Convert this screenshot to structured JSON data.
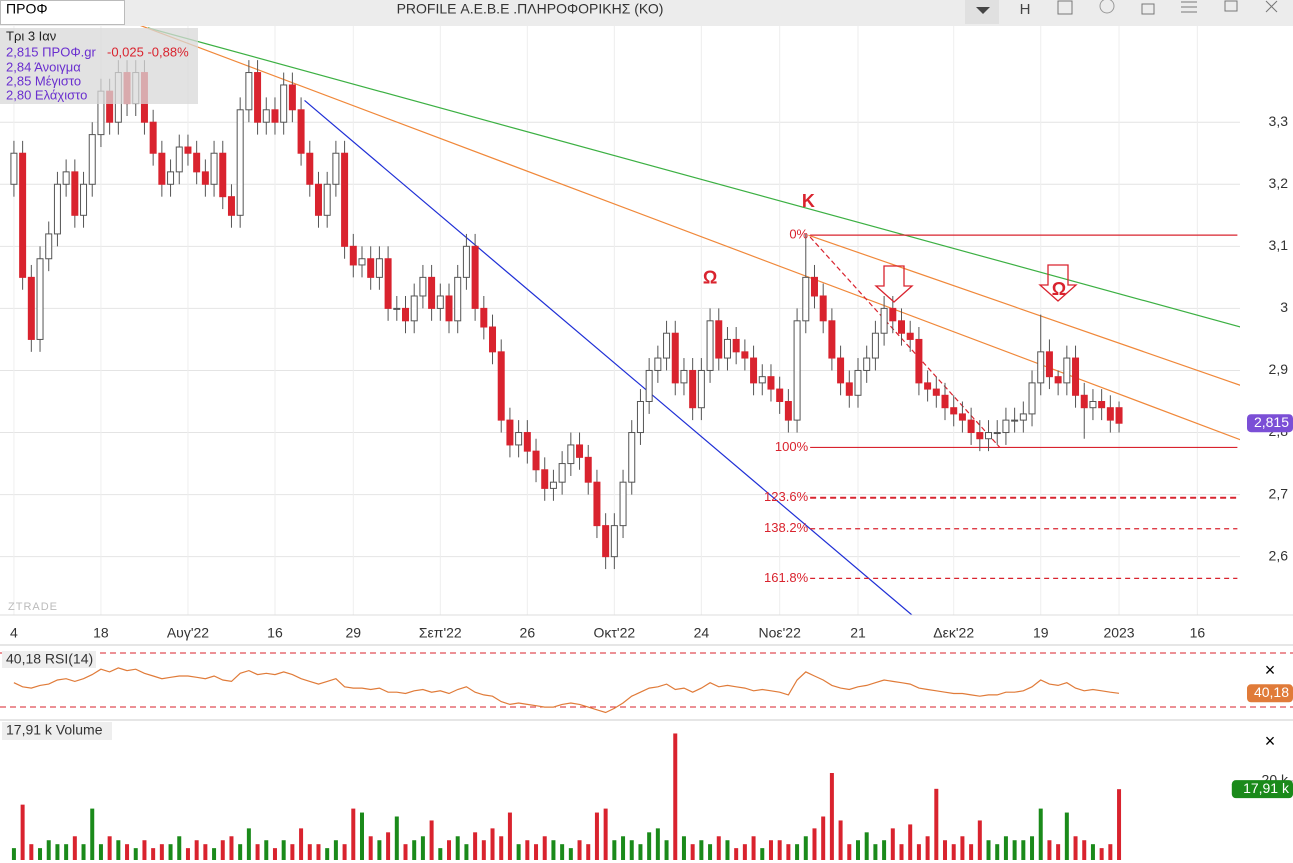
{
  "window": {
    "tab": "ΠΡΟΦ",
    "title": "PROFILE Α.Ε.Β.Ε .ΠΛΗΡΟΦΟΡΙΚΗΣ (ΚΟ)",
    "button": "H",
    "close": "×"
  },
  "info": {
    "date": "Τρι 3 Ιαν",
    "price": "2,815 ΠΡΟΦ.gr",
    "change": "-0,025 -0,88%",
    "lines": [
      "2,84 Άνοιγμα",
      "2,85 Μέγιστο",
      "2,80 Ελάχιστο"
    ]
  },
  "chart_data": [
    {
      "type": "candlestick",
      "watermark": "ZTRADE",
      "grid": true,
      "up_color": "#ffffff",
      "down_color": "#d9232e",
      "outline": "#555555",
      "xlim": [
        -1.6,
        140.9
      ],
      "ylim": [
        2.506,
        3.455
      ],
      "xticks": [
        {
          "value": 0,
          "label": "4"
        },
        {
          "value": 10,
          "label": "18"
        },
        {
          "value": 20,
          "label": "Αυγ'22"
        },
        {
          "value": 30,
          "label": "16"
        },
        {
          "value": 39,
          "label": "29"
        },
        {
          "value": 49,
          "label": "Σεπ'22"
        },
        {
          "value": 59,
          "label": "26"
        },
        {
          "value": 69,
          "label": "Οκτ'22"
        },
        {
          "value": 79,
          "label": "24"
        },
        {
          "value": 88,
          "label": "Νοε'22"
        },
        {
          "value": 97,
          "label": "21"
        },
        {
          "value": 108,
          "label": "Δεκ'22"
        },
        {
          "value": 118,
          "label": "19"
        },
        {
          "value": 127,
          "label": "2023"
        },
        {
          "value": 136,
          "label": "16"
        }
      ],
      "yticks": [
        {
          "value": 2.6,
          "label": "2,6"
        },
        {
          "value": 2.7,
          "label": "2,7"
        },
        {
          "value": 2.8,
          "label": "2,8"
        },
        {
          "value": 2.9,
          "label": "2,9"
        },
        3,
        {
          "value": 3.1,
          "label": "3,1"
        },
        {
          "value": 3.2,
          "label": "3,2"
        },
        {
          "value": 3.3,
          "label": "3,3"
        }
      ],
      "candles": [
        [
          3.2,
          3.27,
          3.18,
          3.25
        ],
        [
          3.25,
          3.27,
          3.03,
          3.05
        ],
        [
          3.05,
          3.07,
          2.93,
          2.95
        ],
        [
          2.95,
          3.1,
          2.93,
          3.08
        ],
        [
          3.08,
          3.14,
          3.06,
          3.12
        ],
        [
          3.12,
          3.22,
          3.1,
          3.2
        ],
        [
          3.2,
          3.24,
          3.18,
          3.22
        ],
        [
          3.22,
          3.24,
          3.13,
          3.15
        ],
        [
          3.15,
          3.22,
          3.13,
          3.2
        ],
        [
          3.2,
          3.3,
          3.18,
          3.28
        ],
        [
          3.28,
          3.37,
          3.26,
          3.35
        ],
        [
          3.35,
          3.37,
          3.28,
          3.3
        ],
        [
          3.3,
          3.4,
          3.28,
          3.38
        ],
        [
          3.38,
          3.4,
          3.31,
          3.33
        ],
        [
          3.33,
          3.4,
          3.31,
          3.38
        ],
        [
          3.38,
          3.4,
          3.28,
          3.3
        ],
        [
          3.3,
          3.32,
          3.23,
          3.25
        ],
        [
          3.25,
          3.27,
          3.18,
          3.2
        ],
        [
          3.2,
          3.24,
          3.18,
          3.22
        ],
        [
          3.22,
          3.28,
          3.2,
          3.26
        ],
        [
          3.26,
          3.28,
          3.23,
          3.25
        ],
        [
          3.25,
          3.27,
          3.2,
          3.22
        ],
        [
          3.22,
          3.24,
          3.18,
          3.2
        ],
        [
          3.2,
          3.27,
          3.18,
          3.25
        ],
        [
          3.25,
          3.27,
          3.16,
          3.18
        ],
        [
          3.18,
          3.2,
          3.13,
          3.15
        ],
        [
          3.15,
          3.34,
          3.13,
          3.32
        ],
        [
          3.32,
          3.4,
          3.3,
          3.38
        ],
        [
          3.38,
          3.4,
          3.28,
          3.3
        ],
        [
          3.3,
          3.34,
          3.28,
          3.32
        ],
        [
          3.32,
          3.34,
          3.28,
          3.3
        ],
        [
          3.3,
          3.38,
          3.28,
          3.36
        ],
        [
          3.36,
          3.38,
          3.3,
          3.32
        ],
        [
          3.32,
          3.34,
          3.23,
          3.25
        ],
        [
          3.25,
          3.27,
          3.18,
          3.2
        ],
        [
          3.2,
          3.22,
          3.13,
          3.15
        ],
        [
          3.15,
          3.22,
          3.13,
          3.2
        ],
        [
          3.2,
          3.27,
          3.18,
          3.25
        ],
        [
          3.25,
          3.27,
          3.08,
          3.1
        ],
        [
          3.1,
          3.12,
          3.05,
          3.07
        ],
        [
          3.07,
          3.1,
          3.05,
          3.08
        ],
        [
          3.08,
          3.1,
          3.03,
          3.05
        ],
        [
          3.05,
          3.1,
          3.03,
          3.08
        ],
        [
          3.08,
          3.1,
          2.98,
          3.0
        ],
        [
          3.0,
          3.02,
          2.98,
          3.0
        ],
        [
          3.0,
          3.02,
          2.96,
          2.98
        ],
        [
          2.98,
          3.04,
          2.96,
          3.02
        ],
        [
          3.02,
          3.07,
          3.0,
          3.05
        ],
        [
          3.05,
          3.07,
          2.98,
          3.0
        ],
        [
          3.0,
          3.04,
          2.98,
          3.02
        ],
        [
          3.02,
          3.04,
          2.96,
          2.98
        ],
        [
          2.98,
          3.07,
          2.96,
          3.05
        ],
        [
          3.05,
          3.12,
          3.03,
          3.1
        ],
        [
          3.1,
          3.12,
          2.98,
          3.0
        ],
        [
          3.0,
          3.02,
          2.95,
          2.97
        ],
        [
          2.97,
          2.99,
          2.91,
          2.93
        ],
        [
          2.93,
          2.95,
          2.8,
          2.82
        ],
        [
          2.82,
          2.84,
          2.76,
          2.78
        ],
        [
          2.78,
          2.82,
          2.76,
          2.8
        ],
        [
          2.8,
          2.82,
          2.75,
          2.77
        ],
        [
          2.77,
          2.79,
          2.72,
          2.74
        ],
        [
          2.74,
          2.76,
          2.69,
          2.71
        ],
        [
          2.71,
          2.74,
          2.69,
          2.72
        ],
        [
          2.72,
          2.77,
          2.7,
          2.75
        ],
        [
          2.75,
          2.8,
          2.73,
          2.78
        ],
        [
          2.78,
          2.8,
          2.74,
          2.76
        ],
        [
          2.76,
          2.78,
          2.7,
          2.72
        ],
        [
          2.72,
          2.74,
          2.63,
          2.65
        ],
        [
          2.65,
          2.67,
          2.58,
          2.6
        ],
        [
          2.6,
          2.67,
          2.58,
          2.65
        ],
        [
          2.65,
          2.74,
          2.63,
          2.72
        ],
        [
          2.72,
          2.82,
          2.7,
          2.8
        ],
        [
          2.8,
          2.87,
          2.78,
          2.85
        ],
        [
          2.85,
          2.92,
          2.83,
          2.9
        ],
        [
          2.9,
          2.94,
          2.88,
          2.92
        ],
        [
          2.92,
          2.98,
          2.9,
          2.96
        ],
        [
          2.96,
          2.98,
          2.86,
          2.88
        ],
        [
          2.88,
          2.92,
          2.86,
          2.9
        ],
        [
          2.9,
          2.92,
          2.82,
          2.84
        ],
        [
          2.84,
          2.92,
          2.82,
          2.9
        ],
        [
          2.9,
          3.0,
          2.88,
          2.98
        ],
        [
          2.98,
          3.0,
          2.9,
          2.92
        ],
        [
          2.92,
          2.97,
          2.9,
          2.95
        ],
        [
          2.95,
          2.97,
          2.91,
          2.93
        ],
        [
          2.93,
          2.95,
          2.9,
          2.92
        ],
        [
          2.92,
          2.94,
          2.86,
          2.88
        ],
        [
          2.88,
          2.91,
          2.86,
          2.89
        ],
        [
          2.89,
          2.91,
          2.85,
          2.87
        ],
        [
          2.87,
          2.89,
          2.83,
          2.85
        ],
        [
          2.85,
          2.87,
          2.8,
          2.82
        ],
        [
          2.82,
          3.0,
          2.8,
          2.98
        ],
        [
          2.98,
          3.12,
          2.96,
          3.05
        ],
        [
          3.05,
          3.07,
          3.0,
          3.02
        ],
        [
          3.02,
          3.04,
          2.96,
          2.98
        ],
        [
          2.98,
          3.0,
          2.9,
          2.92
        ],
        [
          2.92,
          2.94,
          2.86,
          2.88
        ],
        [
          2.88,
          2.9,
          2.84,
          2.86
        ],
        [
          2.86,
          2.92,
          2.84,
          2.9
        ],
        [
          2.9,
          2.94,
          2.88,
          2.92
        ],
        [
          2.92,
          2.98,
          2.9,
          2.96
        ],
        [
          2.96,
          3.02,
          2.94,
          3.0
        ],
        [
          3.0,
          3.02,
          2.96,
          2.98
        ],
        [
          2.98,
          3.0,
          2.94,
          2.96
        ],
        [
          2.96,
          2.98,
          2.93,
          2.95
        ],
        [
          2.95,
          2.97,
          2.86,
          2.88
        ],
        [
          2.88,
          2.9,
          2.85,
          2.87
        ],
        [
          2.87,
          2.89,
          2.84,
          2.86
        ],
        [
          2.86,
          2.88,
          2.82,
          2.84
        ],
        [
          2.84,
          2.86,
          2.81,
          2.83
        ],
        [
          2.83,
          2.85,
          2.8,
          2.82
        ],
        [
          2.82,
          2.84,
          2.78,
          2.8
        ],
        [
          2.8,
          2.82,
          2.77,
          2.79
        ],
        [
          2.79,
          2.82,
          2.77,
          2.8
        ],
        [
          2.8,
          2.82,
          2.78,
          2.8
        ],
        [
          2.8,
          2.84,
          2.78,
          2.82
        ],
        [
          2.82,
          2.84,
          2.8,
          2.82
        ],
        [
          2.82,
          2.85,
          2.8,
          2.83
        ],
        [
          2.83,
          2.9,
          2.81,
          2.88
        ],
        [
          2.88,
          2.99,
          2.86,
          2.93
        ],
        [
          2.93,
          2.95,
          2.87,
          2.89
        ],
        [
          2.89,
          2.9,
          2.86,
          2.88
        ],
        [
          2.88,
          2.94,
          2.86,
          2.92
        ],
        [
          2.92,
          2.94,
          2.84,
          2.86
        ],
        [
          2.86,
          2.88,
          2.79,
          2.84
        ],
        [
          2.84,
          2.87,
          2.82,
          2.85
        ],
        [
          2.85,
          2.87,
          2.82,
          2.84
        ],
        [
          2.84,
          2.86,
          2.8,
          2.82
        ],
        [
          2.84,
          2.85,
          2.8,
          2.815
        ]
      ],
      "last_value": {
        "value": 2.815,
        "label": "2,815",
        "color": "#7b4fd6"
      },
      "trendlines": [
        {
          "color": "#1f2fd6",
          "points": [
            [
              33.4,
              3.335
            ],
            [
              103.2,
              2.506
            ]
          ]
        },
        {
          "color": "#3cb043",
          "points": [
            [
              15.4,
              3.452
            ],
            [
              146.7,
              2.948
            ]
          ]
        },
        {
          "color": "#f0883a",
          "points": [
            [
              14.5,
              3.456
            ],
            [
              146.7,
              2.758
            ]
          ]
        },
        {
          "color": "#f0883a",
          "points": [
            [
              91.3,
              3.118
            ],
            [
              146.7,
              2.848
            ]
          ]
        },
        {
          "color": "#d9232e",
          "dashed": true,
          "points": [
            [
              91.5,
              3.115
            ],
            [
              113.3,
              2.776
            ]
          ]
        }
      ],
      "fibonacci": {
        "color": "#d9232e",
        "x_range": [
          91.5,
          140.6
        ],
        "levels": [
          {
            "label": "0%",
            "value": 3.118
          },
          {
            "label": "100%",
            "value": 2.776
          },
          {
            "label": "123.6%",
            "value": 2.695
          },
          {
            "label": "138.2%",
            "value": 2.645
          },
          {
            "label": "161.8%",
            "value": 2.565
          }
        ]
      },
      "annotations": [
        {
          "text": "K",
          "x": 91.3,
          "y": 3.171
        },
        {
          "text": "Ω",
          "x": 80,
          "y": 3.048
        },
        {
          "text": "Ω",
          "x": 120.1,
          "y": 3.029
        }
      ]
    },
    {
      "type": "line",
      "title": "40,18 RSI(14)",
      "color": "#e07b39",
      "ylim": [
        21.9,
        73.7
      ],
      "levels": [
        70,
        30
      ],
      "level_color": "#d9232e",
      "values": [
        48,
        45,
        44,
        46,
        47,
        50,
        51,
        49,
        51,
        54,
        58,
        56,
        59,
        57,
        58,
        55,
        53,
        51,
        52,
        53,
        53,
        52,
        51,
        53,
        50,
        49,
        55,
        57,
        54,
        55,
        54,
        56,
        54,
        51,
        49,
        47,
        49,
        51,
        45,
        44,
        44,
        43,
        44,
        41,
        41,
        40,
        42,
        43,
        41,
        42,
        40,
        43,
        45,
        41,
        39,
        38,
        34,
        32,
        33,
        32,
        31,
        30,
        30,
        32,
        33,
        32,
        30,
        28,
        26,
        29,
        33,
        38,
        41,
        44,
        45,
        47,
        43,
        44,
        41,
        44,
        48,
        45,
        46,
        45,
        44,
        42,
        43,
        42,
        41,
        39,
        50,
        56,
        53,
        50,
        46,
        44,
        43,
        45,
        46,
        48,
        50,
        49,
        48,
        47,
        44,
        43,
        42,
        41,
        40,
        40,
        39,
        38,
        39,
        39,
        41,
        41,
        42,
        45,
        50,
        47,
        46,
        48,
        44,
        42,
        43,
        42,
        41,
        40.18
      ],
      "last_value": {
        "value": 40.18,
        "label": "40,18",
        "color": "#e07b39"
      }
    },
    {
      "type": "bar",
      "title": "17,91 k Volume",
      "up_color": "#1a8a1a",
      "down_color": "#d9232e",
      "ylim": [
        0,
        34.9
      ],
      "yticks": [
        {
          "value": 20,
          "label": "20 k"
        }
      ],
      "values": [
        3,
        14,
        4,
        3,
        5,
        4,
        4,
        6,
        4,
        13,
        4,
        6,
        5,
        4,
        3,
        5,
        3,
        4,
        4,
        6,
        3,
        5,
        4,
        3,
        5,
        6,
        4,
        8,
        4,
        5,
        3,
        5,
        4,
        8,
        4,
        4,
        3,
        5,
        4,
        13,
        12,
        6,
        5,
        7,
        11,
        4,
        5,
        6,
        10,
        3,
        5,
        6,
        4,
        7,
        5,
        8,
        6,
        12,
        4,
        5,
        4,
        6,
        5,
        4,
        3,
        5,
        4,
        12,
        13,
        5,
        6,
        5,
        4,
        7,
        8,
        5,
        32,
        6,
        4,
        5,
        4,
        6,
        5,
        3,
        4,
        6,
        3,
        5,
        5,
        4,
        4,
        6,
        8,
        11,
        22,
        10,
        4,
        5,
        7,
        4,
        5,
        8,
        4,
        9,
        4,
        6,
        18,
        5,
        4,
        6,
        4,
        10,
        5,
        4,
        6,
        5,
        5,
        6,
        13,
        5,
        4,
        12,
        6,
        5,
        4,
        3,
        4,
        17.91
      ],
      "last_value": {
        "value": 17.91,
        "label": "17,91 k",
        "color": "#1a8a1a"
      }
    }
  ]
}
